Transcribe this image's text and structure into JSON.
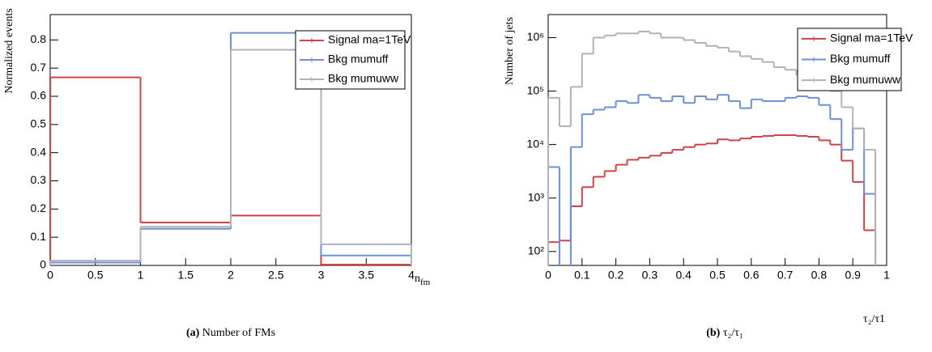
{
  "chart_data": [
    {
      "type": "histogram",
      "y_label": "Normalized events",
      "x_label": "n",
      "x_label_sub": "fm",
      "caption_label": "(a)",
      "caption_text": "Number of FMs",
      "bins": [
        0,
        1,
        2,
        3,
        4
      ],
      "series": [
        {
          "name": "Signal ma=1TeV",
          "color": "#cc4444",
          "values": [
            0.667,
            0.152,
            0.177,
            0.003
          ]
        },
        {
          "name": "Bkg mumuff",
          "color": "#6f8fd6",
          "values": [
            0.01,
            0.13,
            0.825,
            0.035
          ]
        },
        {
          "name": "Bkg mumuww",
          "color": "#b2b2b2",
          "values": [
            0.017,
            0.137,
            0.765,
            0.075
          ]
        }
      ],
      "xlim": [
        0,
        4
      ],
      "xticks": [
        0,
        0.5,
        1,
        1.5,
        2,
        2.5,
        3,
        3.5,
        4
      ],
      "ylim": [
        0,
        0.89
      ],
      "yticks": [
        0,
        0.1,
        0.2,
        0.3,
        0.4,
        0.5,
        0.6,
        0.7,
        0.8
      ],
      "log_y": false,
      "legend": "upper right"
    },
    {
      "type": "histogram",
      "y_label": "Number of jets",
      "x_label": "τ₂/τ1",
      "caption_label": "(b)",
      "caption_text": "τ₂/τ₁",
      "bins": [
        0,
        0.0333,
        0.0667,
        0.1,
        0.1333,
        0.1667,
        0.2,
        0.2333,
        0.2667,
        0.3,
        0.3333,
        0.3667,
        0.4,
        0.4333,
        0.4667,
        0.5,
        0.5333,
        0.5667,
        0.6,
        0.6333,
        0.6667,
        0.7,
        0.7333,
        0.7667,
        0.8,
        0.8333,
        0.8667,
        0.9,
        0.9333,
        0.9667,
        1
      ],
      "series": [
        {
          "name": "Signal ma=1TeV",
          "color": "#cc4444",
          "values": [
            150,
            160,
            700,
            1600,
            2500,
            3200,
            4200,
            5200,
            5700,
            6200,
            7000,
            8000,
            9000,
            10000,
            10500,
            12500,
            12000,
            13000,
            14000,
            14500,
            15000,
            15000,
            14500,
            14000,
            12000,
            10000,
            5000,
            2000,
            250,
            null
          ]
        },
        {
          "name": "Bkg mumuff",
          "color": "#6f8fd6",
          "values": [
            3800,
            null,
            9000,
            37000,
            45000,
            50000,
            65000,
            60000,
            85000,
            75000,
            65000,
            80000,
            60000,
            80000,
            70000,
            85000,
            65000,
            48000,
            70000,
            65000,
            65000,
            75000,
            80000,
            75000,
            55000,
            30000,
            8000,
            20000,
            1200,
            null
          ]
        },
        {
          "name": "Bkg mumuww",
          "color": "#b2b2b2",
          "values": [
            75000,
            22000,
            120000,
            500000,
            1000000,
            1100000,
            1200000,
            1200000,
            1300000,
            1200000,
            1000000,
            1000000,
            900000,
            800000,
            700000,
            650000,
            550000,
            450000,
            400000,
            350000,
            280000,
            250000,
            200000,
            170000,
            140000,
            100000,
            50000,
            20000,
            8000,
            null
          ]
        }
      ],
      "xlim": [
        0,
        1
      ],
      "xticks": [
        0,
        0.1,
        0.2,
        0.3,
        0.4,
        0.5,
        0.6,
        0.7,
        0.8,
        0.9,
        1
      ],
      "ylim": [
        55,
        2700000
      ],
      "yticks": [
        {
          "value": 100,
          "label": "10²"
        },
        {
          "value": 1000,
          "label": "10³"
        },
        {
          "value": 10000,
          "label": "10⁴"
        },
        {
          "value": 100000,
          "label": "10⁵"
        },
        {
          "value": 1000000,
          "label": "10⁶"
        }
      ],
      "log_y": true,
      "legend": "upper right"
    }
  ]
}
